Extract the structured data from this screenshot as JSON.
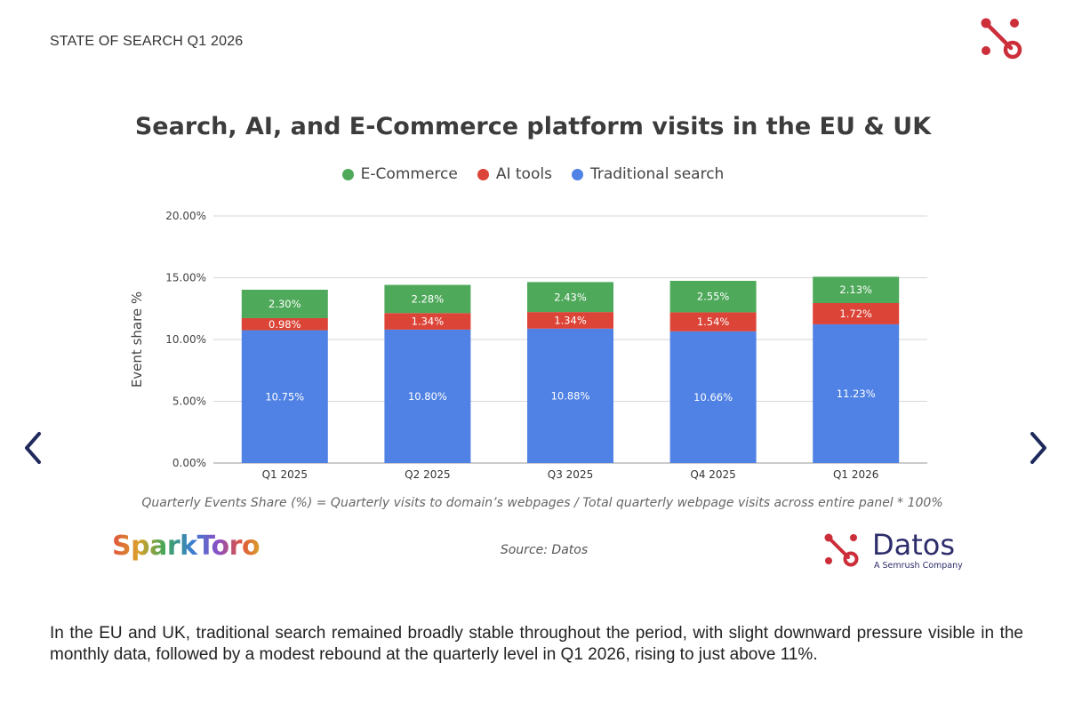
{
  "header": {
    "doc_label": "STATE OF SEARCH Q1 2026"
  },
  "icons": {
    "brand": "sparktoro-node-icon",
    "prev": "chevron-left-icon",
    "next": "chevron-right-icon"
  },
  "colors": {
    "ecommerce": "#4fa95a",
    "ai": "#db4437",
    "search": "#4f82e4",
    "accent": "#cc2e3a",
    "nav": "#1f2a5c"
  },
  "chart_data": {
    "type": "bar",
    "stacked": true,
    "title": "Search, AI, and E-Commerce platform visits in the EU & UK",
    "ylabel": "Event share %",
    "xlabel": "",
    "ylim": [
      0,
      20
    ],
    "yticks": [
      "0.00%",
      "5.00%",
      "10.00%",
      "15.00%",
      "20.00%"
    ],
    "grid": true,
    "legend_position": "top-center",
    "categories": [
      "Q1 2025",
      "Q2 2025",
      "Q3 2025",
      "Q4 2025",
      "Q1 2026"
    ],
    "series": [
      {
        "name": "Traditional search",
        "values": [
          10.75,
          10.8,
          10.88,
          10.66,
          11.23
        ],
        "labels": [
          "10.75%",
          "10.80%",
          "10.88%",
          "10.66%",
          "11.23%"
        ],
        "color": "#4f82e4"
      },
      {
        "name": "AI tools",
        "values": [
          0.98,
          1.34,
          1.34,
          1.54,
          1.72
        ],
        "labels": [
          "0.98%",
          "1.34%",
          "1.34%",
          "1.54%",
          "1.72%"
        ],
        "color": "#db4437"
      },
      {
        "name": "E-Commerce",
        "values": [
          2.3,
          2.28,
          2.43,
          2.55,
          2.13
        ],
        "labels": [
          "2.30%",
          "2.28%",
          "2.43%",
          "2.55%",
          "2.13%"
        ],
        "color": "#4fa95a"
      }
    ],
    "legend_order": [
      "E-Commerce",
      "AI tools",
      "Traditional search"
    ]
  },
  "formula_note": "Quarterly Events Share (%) = Quarterly visits to domain’s webpages / Total quarterly webpage visits across entire panel * 100%",
  "source": "Source: Datos",
  "logos": {
    "sparktoro": "SparkToro",
    "datos": "Datos",
    "datos_sub": "A Semrush Company"
  },
  "body_text": "In the EU and UK, traditional search remained broadly stable throughout the period, with slight downward pressure visible in the monthly data, followed by a modest rebound at the quarterly level in Q1 2026, rising to just above 11%."
}
